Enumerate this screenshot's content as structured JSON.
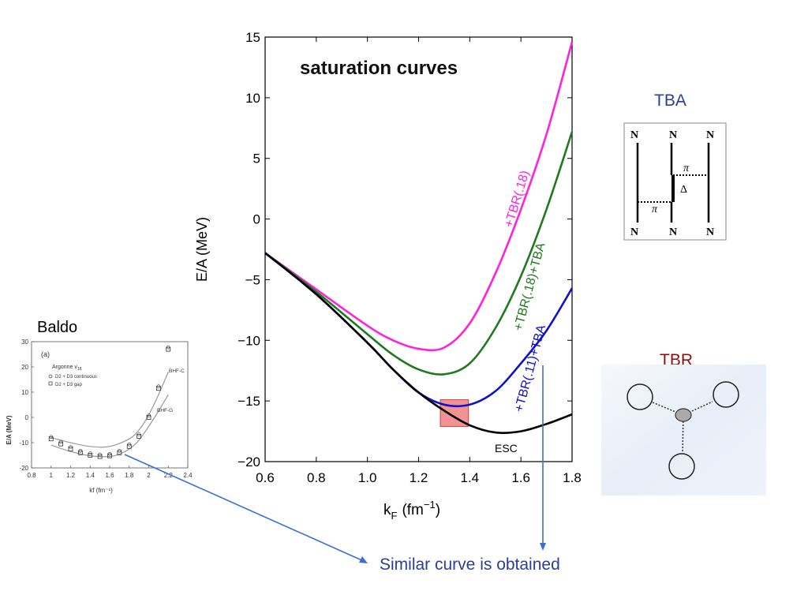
{
  "main_chart": {
    "title": "saturation curves",
    "ylabel": "E/A (MeV)",
    "xlabel_main": "k",
    "xlabel_sub": "F",
    "xlabel_unit_pre": "(fm",
    "xlabel_unit_sup": "−1",
    "xlabel_unit_post": ")"
  },
  "baldo": {
    "caption": "Baldo",
    "panel_label": "(a)",
    "legend_title_main": "Argonne v",
    "legend_title_sub": "18",
    "legend_items": [
      "D2 + D3  continuous",
      "D2 + D3  gap"
    ],
    "curve_labels": [
      "BHF-C",
      "BHF-G"
    ],
    "ylabel": "E/A (MeV)",
    "xlabel": "kf (fm⁻¹)"
  },
  "tba": {
    "title": "TBA",
    "top_labels": [
      "N",
      "N",
      "N"
    ],
    "bottom_labels": [
      "N",
      "N",
      "N"
    ],
    "pi_labels": [
      "π",
      "π"
    ],
    "delta_label": "Δ"
  },
  "tbr": {
    "title": "TBR"
  },
  "note": {
    "text": "Similar curve is obtained"
  },
  "colors": {
    "magenta": "#ff22dd",
    "green": "#1f7a1f",
    "blue": "#1010c8",
    "black": "#000000",
    "arrow": "#3a6fd8",
    "tba_title": "#2b3d9a",
    "tbr_title": "#8b1010",
    "highlight": "#f08080"
  },
  "chart_data": [
    {
      "type": "line",
      "title": "saturation curves",
      "xlabel": "kF (fm−1)",
      "ylabel": "E/A (MeV)",
      "xlim": [
        0.6,
        1.8
      ],
      "ylim": [
        -20,
        15
      ],
      "xticks": [
        "0.6",
        "0.8",
        "1.0",
        "1.2",
        "1.4",
        "1.6",
        "1.8"
      ],
      "yticks": [
        "−20",
        "−15",
        "−10",
        "−5",
        "0",
        "5",
        "10",
        "15"
      ],
      "series": [
        {
          "name": "+TBR(.18)",
          "color": "#ff22dd",
          "x": [
            0.6,
            0.8,
            1.0,
            1.1,
            1.2,
            1.3,
            1.4,
            1.5,
            1.6,
            1.7,
            1.8
          ],
          "y": [
            -2.8,
            -5.8,
            -8.8,
            -10.0,
            -10.7,
            -10.6,
            -8.6,
            -4.5,
            0.8,
            7.0,
            14.6
          ]
        },
        {
          "name": "+TBR(.18)+TBA",
          "color": "#1f7a1f",
          "x": [
            0.6,
            0.8,
            1.0,
            1.1,
            1.2,
            1.3,
            1.4,
            1.5,
            1.6,
            1.7,
            1.8
          ],
          "y": [
            -2.8,
            -6.0,
            -9.5,
            -11.2,
            -12.4,
            -12.8,
            -11.9,
            -9.0,
            -4.7,
            0.8,
            7.2
          ]
        },
        {
          "name": "+TBR(.11)+TBA",
          "color": "#1010c8",
          "x": [
            0.6,
            0.8,
            1.0,
            1.1,
            1.2,
            1.3,
            1.4,
            1.5,
            1.6,
            1.7,
            1.8
          ],
          "y": [
            -2.8,
            -6.2,
            -10.2,
            -12.4,
            -14.3,
            -15.3,
            -15.3,
            -14.2,
            -11.9,
            -9.2,
            -5.7
          ]
        },
        {
          "name": "ESC",
          "color": "#000000",
          "x": [
            0.6,
            0.8,
            1.0,
            1.1,
            1.2,
            1.3,
            1.4,
            1.5,
            1.6,
            1.7,
            1.8
          ],
          "y": [
            -2.8,
            -6.2,
            -10.2,
            -12.4,
            -14.3,
            -15.8,
            -17.0,
            -17.6,
            -17.5,
            -16.9,
            -16.1
          ]
        }
      ]
    },
    {
      "type": "scatter",
      "title": "",
      "xlabel": "kf (fm⁻¹)",
      "ylabel": "E/A (MeV)",
      "xlim": [
        0.8,
        2.4
      ],
      "ylim": [
        -20,
        30
      ],
      "xticks": [
        "0.8",
        "1",
        "1.2",
        "1.4",
        "1.6",
        "1.8",
        "2",
        "2.2",
        "2.4"
      ],
      "yticks": [
        "-20",
        "-10",
        "0",
        "10",
        "20",
        "30"
      ],
      "series": [
        {
          "name": "D2 + D3  gap",
          "x": [
            1.0,
            1.1,
            1.2,
            1.3,
            1.4,
            1.5,
            1.6,
            1.7,
            1.8,
            1.9,
            2.0,
            2.1,
            2.2
          ],
          "y": [
            -8.5,
            -10.5,
            -12.5,
            -14,
            -15,
            -15.5,
            -15.2,
            -14,
            -11.5,
            -7.5,
            0,
            11.5,
            27
          ]
        },
        {
          "name": "BHF-C",
          "x": [
            1.0,
            1.2,
            1.4,
            1.6,
            1.8,
            1.9,
            2.0,
            2.1,
            2.2
          ],
          "y": [
            -8,
            -10,
            -11.5,
            -11.5,
            -8.5,
            -5,
            1,
            9,
            18
          ]
        },
        {
          "name": "BHF-G",
          "x": [
            1.0,
            1.2,
            1.4,
            1.6,
            1.7,
            1.8,
            1.9,
            2.0,
            2.1,
            2.2
          ],
          "y": [
            -11,
            -13.5,
            -15.2,
            -15.5,
            -14.5,
            -12.5,
            -9,
            -3.5,
            2.5,
            9
          ]
        }
      ]
    }
  ]
}
